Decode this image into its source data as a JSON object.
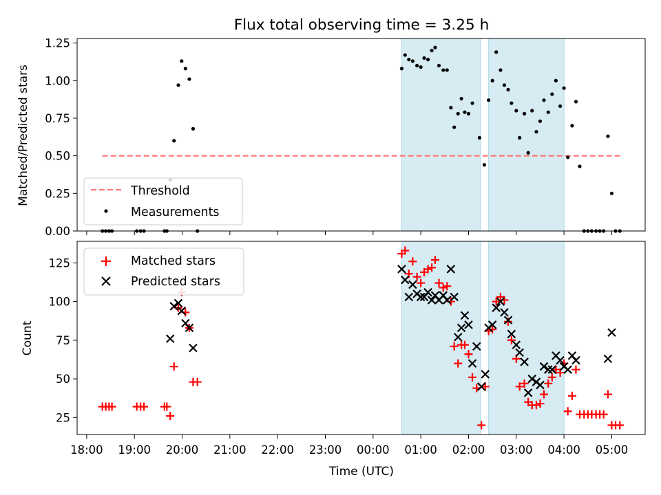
{
  "chart_data": [
    {
      "type": "scatter",
      "title": "Flux total observing time = 3.25 h",
      "xlabel": "",
      "ylabel": "Matched/Predicted stars",
      "xlim": [
        17.8,
        29.7
      ],
      "ylim": [
        0,
        1.28
      ],
      "yticks": [
        0,
        0.25,
        0.5,
        0.75,
        1.0,
        1.25
      ],
      "ytick_labels": [
        "0.00",
        "0.25",
        "0.50",
        "0.75",
        "1.00",
        "1.25"
      ],
      "shaded_intervals": [
        [
          24.6,
          26.25
        ],
        [
          26.42,
          28.0
        ]
      ],
      "threshold": {
        "name": "Threshold",
        "x": [
          18.33,
          29.18
        ],
        "y": 0.5,
        "color": "#ff7777"
      },
      "legend": {
        "position": "lower-left",
        "entries": [
          "Threshold",
          "Measurements"
        ]
      },
      "series": [
        {
          "name": "Measurements",
          "color": "#000000",
          "points": [
            [
              18.33,
              0
            ],
            [
              18.4,
              0
            ],
            [
              18.47,
              0
            ],
            [
              18.53,
              0
            ],
            [
              19.05,
              0
            ],
            [
              19.13,
              0
            ],
            [
              19.2,
              0
            ],
            [
              19.63,
              0
            ],
            [
              19.68,
              0
            ],
            [
              19.75,
              0.34
            ],
            [
              19.83,
              0.6
            ],
            [
              19.92,
              0.97
            ],
            [
              19.99,
              1.13
            ],
            [
              20.07,
              1.08
            ],
            [
              20.15,
              1.01
            ],
            [
              20.23,
              0.68
            ],
            [
              20.32,
              0
            ],
            [
              24.6,
              1.08
            ],
            [
              24.67,
              1.17
            ],
            [
              24.75,
              1.14
            ],
            [
              24.83,
              1.13
            ],
            [
              24.92,
              1.1
            ],
            [
              25.0,
              1.09
            ],
            [
              25.07,
              1.15
            ],
            [
              25.15,
              1.14
            ],
            [
              25.23,
              1.2
            ],
            [
              25.3,
              1.22
            ],
            [
              25.38,
              1.1
            ],
            [
              25.47,
              1.07
            ],
            [
              25.55,
              1.07
            ],
            [
              25.63,
              0.82
            ],
            [
              25.7,
              0.69
            ],
            [
              25.78,
              0.78
            ],
            [
              25.85,
              0.88
            ],
            [
              25.92,
              0.79
            ],
            [
              26.0,
              0.78
            ],
            [
              26.08,
              0.85
            ],
            [
              26.23,
              0.62
            ],
            [
              26.33,
              0.44
            ],
            [
              26.42,
              0.87
            ],
            [
              26.5,
              1.0
            ],
            [
              26.58,
              1.19
            ],
            [
              26.67,
              1.07
            ],
            [
              26.75,
              0.97
            ],
            [
              26.83,
              0.94
            ],
            [
              26.9,
              0.85
            ],
            [
              27.0,
              0.8
            ],
            [
              27.07,
              0.62
            ],
            [
              27.17,
              0.78
            ],
            [
              27.25,
              0.52
            ],
            [
              27.33,
              0.8
            ],
            [
              27.42,
              0.66
            ],
            [
              27.5,
              0.73
            ],
            [
              27.58,
              0.87
            ],
            [
              27.67,
              0.79
            ],
            [
              27.75,
              0.91
            ],
            [
              27.83,
              1.0
            ],
            [
              27.92,
              0.83
            ],
            [
              28.0,
              0.95
            ],
            [
              28.08,
              0.49
            ],
            [
              28.17,
              0.7
            ],
            [
              28.25,
              0.86
            ],
            [
              28.33,
              0.43
            ],
            [
              28.42,
              0
            ],
            [
              28.5,
              0
            ],
            [
              28.58,
              0
            ],
            [
              28.67,
              0
            ],
            [
              28.75,
              0
            ],
            [
              28.83,
              0
            ],
            [
              28.92,
              0.63
            ],
            [
              29.0,
              0.25
            ],
            [
              29.08,
              0
            ],
            [
              29.17,
              0
            ]
          ]
        }
      ]
    },
    {
      "type": "scatter",
      "title": "",
      "xlabel": "Time (UTC)",
      "ylabel": "Count",
      "xlim": [
        17.8,
        29.7
      ],
      "ylim": [
        14,
        139
      ],
      "xticks": [
        18,
        19,
        20,
        21,
        22,
        23,
        24,
        25,
        26,
        27,
        28,
        29
      ],
      "xtick_labels": [
        "18:00",
        "19:00",
        "20:00",
        "21:00",
        "22:00",
        "23:00",
        "00:00",
        "01:00",
        "02:00",
        "03:00",
        "04:00",
        "05:00"
      ],
      "yticks": [
        25,
        50,
        75,
        100,
        125
      ],
      "ytick_labels": [
        "25",
        "50",
        "75",
        "100",
        "125"
      ],
      "shaded_intervals": [
        [
          24.6,
          26.25
        ],
        [
          26.42,
          28.0
        ]
      ],
      "legend": {
        "position": "upper-left",
        "entries": [
          "Matched stars",
          "Predicted stars"
        ]
      },
      "series": [
        {
          "name": "Matched stars",
          "marker": "+",
          "color": "#ff0000",
          "points": [
            [
              18.33,
              32
            ],
            [
              18.4,
              32
            ],
            [
              18.47,
              32
            ],
            [
              18.53,
              32
            ],
            [
              19.05,
              32
            ],
            [
              19.13,
              32
            ],
            [
              19.2,
              32
            ],
            [
              19.63,
              32
            ],
            [
              19.68,
              32
            ],
            [
              19.75,
              26
            ],
            [
              19.83,
              58
            ],
            [
              19.92,
              96
            ],
            [
              19.99,
              106
            ],
            [
              20.07,
              93
            ],
            [
              20.15,
              83
            ],
            [
              20.23,
              48
            ],
            [
              20.32,
              48
            ],
            [
              24.6,
              131
            ],
            [
              24.67,
              133
            ],
            [
              24.75,
              118
            ],
            [
              24.83,
              126
            ],
            [
              24.92,
              116
            ],
            [
              25.0,
              112
            ],
            [
              25.07,
              119
            ],
            [
              25.15,
              121
            ],
            [
              25.23,
              122
            ],
            [
              25.3,
              127
            ],
            [
              25.38,
              112
            ],
            [
              25.47,
              109
            ],
            [
              25.55,
              110
            ],
            [
              25.63,
              100
            ],
            [
              25.7,
              71
            ],
            [
              25.78,
              60
            ],
            [
              25.85,
              72
            ],
            [
              25.92,
              72
            ],
            [
              26.0,
              66
            ],
            [
              26.08,
              51
            ],
            [
              26.17,
              44
            ],
            [
              26.27,
              20
            ],
            [
              26.35,
              45
            ],
            [
              26.42,
              81
            ],
            [
              26.5,
              82
            ],
            [
              26.58,
              100
            ],
            [
              26.67,
              103
            ],
            [
              26.75,
              101
            ],
            [
              26.83,
              87
            ],
            [
              26.9,
              75
            ],
            [
              27.0,
              63
            ],
            [
              27.07,
              45
            ],
            [
              27.17,
              47
            ],
            [
              27.25,
              35
            ],
            [
              27.33,
              33
            ],
            [
              27.42,
              33
            ],
            [
              27.5,
              34
            ],
            [
              27.58,
              40
            ],
            [
              27.67,
              47
            ],
            [
              27.75,
              51
            ],
            [
              27.83,
              56
            ],
            [
              27.92,
              54
            ],
            [
              28.0,
              60
            ],
            [
              28.08,
              29
            ],
            [
              28.17,
              39
            ],
            [
              28.25,
              56
            ],
            [
              28.33,
              27
            ],
            [
              28.42,
              27
            ],
            [
              28.5,
              27
            ],
            [
              28.58,
              27
            ],
            [
              28.67,
              27
            ],
            [
              28.75,
              27
            ],
            [
              28.83,
              27
            ],
            [
              28.92,
              40
            ],
            [
              29.0,
              20
            ],
            [
              29.08,
              20
            ],
            [
              29.17,
              20
            ]
          ]
        },
        {
          "name": "Predicted stars",
          "marker": "x",
          "color": "#000000",
          "points": [
            [
              19.75,
              76
            ],
            [
              19.83,
              97
            ],
            [
              19.92,
              99
            ],
            [
              19.99,
              94
            ],
            [
              20.07,
              86
            ],
            [
              20.15,
              83
            ],
            [
              20.23,
              70
            ],
            [
              24.6,
              121
            ],
            [
              24.67,
              114
            ],
            [
              24.75,
              103
            ],
            [
              24.83,
              111
            ],
            [
              24.92,
              105
            ],
            [
              25.0,
              103
            ],
            [
              25.07,
              103
            ],
            [
              25.15,
              106
            ],
            [
              25.23,
              101
            ],
            [
              25.3,
              104
            ],
            [
              25.38,
              101
            ],
            [
              25.47,
              104
            ],
            [
              25.55,
              101
            ],
            [
              25.63,
              121
            ],
            [
              25.7,
              103
            ],
            [
              25.78,
              77
            ],
            [
              25.85,
              83
            ],
            [
              25.92,
              91
            ],
            [
              26.0,
              85
            ],
            [
              26.08,
              60
            ],
            [
              26.17,
              71
            ],
            [
              26.27,
              45
            ],
            [
              26.35,
              53
            ],
            [
              26.42,
              83
            ],
            [
              26.5,
              85
            ],
            [
              26.58,
              96
            ],
            [
              26.67,
              100
            ],
            [
              26.75,
              93
            ],
            [
              26.83,
              88
            ],
            [
              26.9,
              79
            ],
            [
              27.0,
              72
            ],
            [
              27.07,
              67
            ],
            [
              27.17,
              61
            ],
            [
              27.25,
              41
            ],
            [
              27.33,
              50
            ],
            [
              27.42,
              48
            ],
            [
              27.5,
              46
            ],
            [
              27.58,
              58
            ],
            [
              27.67,
              56
            ],
            [
              27.75,
              56
            ],
            [
              27.83,
              65
            ],
            [
              27.92,
              62
            ],
            [
              28.0,
              58
            ],
            [
              28.08,
              56
            ],
            [
              28.17,
              65
            ],
            [
              28.25,
              62
            ],
            [
              28.92,
              63
            ],
            [
              29.0,
              80
            ]
          ]
        }
      ]
    }
  ]
}
